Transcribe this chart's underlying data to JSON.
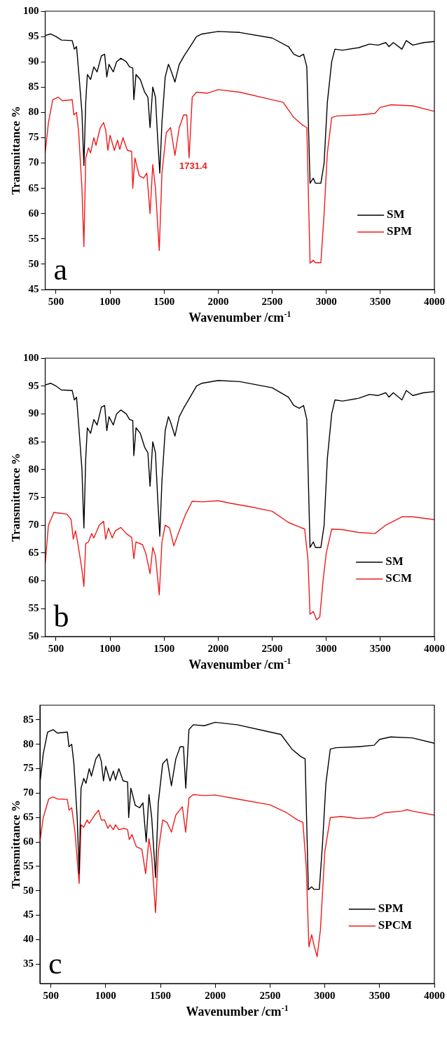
{
  "chart_data": [
    {
      "type": "line",
      "xlabel": "Wavenumber /cm$^{-1}$",
      "ylabel": "Transmittance %",
      "xlim": [
        400,
        4000
      ],
      "xticks": [
        500,
        1000,
        1500,
        2000,
        2500,
        3000,
        3500,
        4000
      ],
      "ylim": [
        45,
        100
      ],
      "yticks": [
        45,
        50,
        55,
        60,
        65,
        70,
        75,
        80,
        85,
        90,
        95,
        100
      ],
      "legend": "bottom right",
      "grid": false,
      "annotations": [
        "a",
        {
          "text": "1731.4",
          "x": 1731.4,
          "y": 71
        }
      ],
      "series": [
        {
          "name": "SM",
          "color": "#000000",
          "x": [
            400,
            450,
            500,
            550,
            650,
            670,
            690,
            710,
            740,
            758,
            775,
            790,
            820,
            850,
            880,
            920,
            950,
            970,
            990,
            1030,
            1060,
            1100,
            1150,
            1180,
            1210,
            1220,
            1240,
            1280,
            1320,
            1350,
            1370,
            1395,
            1420,
            1440,
            1460,
            1480,
            1510,
            1540,
            1560,
            1600,
            1640,
            1680,
            1740,
            1800,
            1850,
            2000,
            2200,
            2500,
            2650,
            2700,
            2750,
            2790,
            2820,
            2850,
            2880,
            2900,
            2950,
            2980,
            3010,
            3050,
            3080,
            3150,
            3300,
            3400,
            3480,
            3550,
            3580,
            3620,
            3700,
            3740,
            3800,
            3900,
            4000
          ],
          "values": [
            95.2,
            95.5,
            95,
            94.3,
            94.2,
            92.5,
            93,
            88,
            80,
            69.5,
            82,
            87.5,
            86.5,
            89,
            88,
            91.2,
            91.5,
            87,
            89.5,
            88,
            90,
            90.7,
            90,
            89,
            88.8,
            82.5,
            87.5,
            86.5,
            84,
            83,
            77,
            85,
            83,
            75,
            68,
            78,
            87,
            89.5,
            88.5,
            86,
            89.5,
            91,
            93,
            95,
            95.5,
            96,
            95.8,
            94.7,
            93,
            91.5,
            91,
            91.5,
            89,
            66,
            67,
            66,
            66,
            70,
            82,
            90,
            92.5,
            92.3,
            92.8,
            93.5,
            93.3,
            93.8,
            93,
            93.8,
            92.5,
            94.2,
            93.3,
            93.8,
            94
          ]
        },
        {
          "name": "SPM",
          "color": "#ee1c1c",
          "x": [
            400,
            430,
            470,
            520,
            560,
            650,
            665,
            690,
            710,
            740,
            758,
            775,
            800,
            820,
            850,
            870,
            910,
            940,
            960,
            980,
            1000,
            1040,
            1070,
            1090,
            1120,
            1160,
            1200,
            1210,
            1230,
            1270,
            1310,
            1340,
            1370,
            1395,
            1420,
            1455,
            1480,
            1520,
            1560,
            1600,
            1640,
            1680,
            1710,
            1731,
            1760,
            1800,
            1900,
            2000,
            2200,
            2500,
            2600,
            2700,
            2780,
            2820,
            2850,
            2880,
            2900,
            2950,
            2980,
            3010,
            3050,
            3100,
            3300,
            3450,
            3500,
            3600,
            3800,
            4000
          ],
          "values": [
            72,
            78,
            82.5,
            83,
            82.3,
            82.5,
            79.5,
            80,
            76,
            65,
            53.5,
            71,
            73,
            72,
            75,
            73.5,
            77,
            78,
            76.5,
            72.5,
            75.5,
            72.5,
            74.5,
            72.7,
            75,
            72.5,
            72.3,
            65,
            71,
            67.5,
            67,
            68,
            60,
            69.7,
            65,
            52.7,
            68,
            76,
            77,
            71.5,
            77,
            79.5,
            79.5,
            71,
            83,
            84,
            83.8,
            84.5,
            84,
            82.5,
            82,
            79,
            77.5,
            77,
            50.2,
            50.8,
            50.3,
            50.3,
            60,
            72,
            79,
            79.3,
            79.5,
            79.8,
            81,
            81.5,
            81.3,
            80.2
          ]
        }
      ]
    },
    {
      "type": "line",
      "xlabel": "Wavenumber /cm$^{-1}$",
      "ylabel": "Transmittance %",
      "xlim": [
        400,
        4000
      ],
      "xticks": [
        500,
        1000,
        1500,
        2000,
        2500,
        3000,
        3500,
        4000
      ],
      "ylim": [
        50,
        100
      ],
      "yticks": [
        50,
        55,
        60,
        65,
        70,
        75,
        80,
        85,
        90,
        95,
        100
      ],
      "legend": "bottom right",
      "grid": false,
      "annotations": [
        "b"
      ],
      "series": [
        {
          "name": "SM",
          "color": "#000000",
          "x": [
            400,
            450,
            500,
            550,
            650,
            670,
            690,
            710,
            740,
            758,
            775,
            790,
            820,
            850,
            880,
            920,
            950,
            970,
            990,
            1030,
            1060,
            1100,
            1150,
            1180,
            1210,
            1220,
            1240,
            1280,
            1320,
            1350,
            1370,
            1395,
            1420,
            1440,
            1460,
            1480,
            1510,
            1540,
            1560,
            1600,
            1640,
            1680,
            1740,
            1800,
            1850,
            2000,
            2200,
            2500,
            2650,
            2700,
            2750,
            2790,
            2820,
            2850,
            2880,
            2900,
            2950,
            2980,
            3010,
            3050,
            3080,
            3150,
            3300,
            3400,
            3480,
            3550,
            3580,
            3620,
            3700,
            3740,
            3800,
            3900,
            4000
          ],
          "values": [
            95.2,
            95.5,
            95,
            94.3,
            94.2,
            92.5,
            93,
            88,
            80,
            69.5,
            82,
            87.5,
            86.5,
            89,
            88,
            91.2,
            91.5,
            87,
            89.5,
            88,
            90,
            90.7,
            90,
            89,
            88.8,
            82.5,
            87.5,
            86.5,
            84,
            83,
            77,
            85,
            83,
            75,
            68,
            78,
            87,
            89.5,
            88.5,
            86,
            89.5,
            91,
            93,
            95,
            95.5,
            96,
            95.8,
            94.7,
            93,
            91.5,
            91,
            91.5,
            89,
            66,
            67,
            66,
            66,
            70,
            82,
            90,
            92.5,
            92.3,
            92.8,
            93.5,
            93.3,
            93.8,
            93,
            93.8,
            92.5,
            94.2,
            93.3,
            93.8,
            94
          ]
        },
        {
          "name": "SCM",
          "color": "#ee1c1c",
          "x": [
            400,
            430,
            480,
            520,
            600,
            640,
            660,
            680,
            700,
            740,
            758,
            775,
            800,
            830,
            850,
            900,
            940,
            960,
            985,
            1020,
            1050,
            1100,
            1150,
            1200,
            1220,
            1240,
            1300,
            1330,
            1370,
            1395,
            1420,
            1455,
            1480,
            1510,
            1550,
            1590,
            1640,
            1700,
            1760,
            1850,
            2000,
            2100,
            2300,
            2500,
            2650,
            2750,
            2800,
            2830,
            2850,
            2880,
            2910,
            2940,
            2970,
            3000,
            3050,
            3150,
            3300,
            3450,
            3550,
            3700,
            3800,
            4000
          ],
          "values": [
            63,
            70,
            72.3,
            72.2,
            72,
            71,
            67.5,
            69,
            67,
            62,
            59,
            66.7,
            67,
            68.5,
            67.7,
            70,
            70.7,
            67.5,
            69.5,
            67.7,
            69,
            69.6,
            68.5,
            67.8,
            64,
            67,
            66.5,
            65,
            61.3,
            66,
            64.5,
            57.5,
            67,
            70,
            69.5,
            66.3,
            69,
            72,
            74.3,
            74.2,
            74.4,
            74,
            73.3,
            72.5,
            70.5,
            69.7,
            69.3,
            64,
            54,
            54.5,
            53,
            53.5,
            60,
            65,
            69.3,
            69.2,
            68.7,
            68.5,
            70,
            71.5,
            71.5,
            71
          ]
        }
      ]
    },
    {
      "type": "line",
      "xlabel": "Wavenumber /cm$^{-1}$",
      "ylabel": "Transmittance %",
      "xlim": [
        400,
        4000
      ],
      "xticks": [
        500,
        1000,
        1500,
        2000,
        2500,
        3000,
        3500,
        4000
      ],
      "ylim": [
        31,
        88
      ],
      "yticks": [
        35,
        40,
        45,
        50,
        55,
        60,
        65,
        70,
        75,
        80,
        85
      ],
      "legend": "bottom right",
      "grid": false,
      "annotations": [
        "c"
      ],
      "series": [
        {
          "name": "SPM",
          "color": "#000000",
          "x": [
            400,
            430,
            470,
            520,
            560,
            650,
            665,
            690,
            710,
            740,
            758,
            775,
            800,
            820,
            850,
            870,
            910,
            940,
            960,
            980,
            1000,
            1040,
            1070,
            1090,
            1120,
            1160,
            1200,
            1210,
            1230,
            1270,
            1310,
            1340,
            1370,
            1395,
            1420,
            1455,
            1480,
            1520,
            1560,
            1600,
            1640,
            1680,
            1710,
            1731,
            1760,
            1800,
            1900,
            2000,
            2200,
            2500,
            2600,
            2700,
            2780,
            2820,
            2850,
            2880,
            2900,
            2950,
            2980,
            3010,
            3050,
            3100,
            3300,
            3450,
            3500,
            3600,
            3800,
            4000
          ],
          "values": [
            72,
            78,
            82.5,
            83,
            82.3,
            82.5,
            79.5,
            80,
            76,
            65,
            53.5,
            71,
            73,
            72,
            75,
            73.5,
            77,
            78,
            76.5,
            72.5,
            75.5,
            72.5,
            74.5,
            72.7,
            75,
            72.5,
            72.3,
            65,
            71,
            67.5,
            67,
            68,
            60,
            69.7,
            65,
            52.7,
            68,
            76,
            77,
            71.5,
            77,
            79.5,
            79.5,
            71,
            83,
            84,
            83.8,
            84.5,
            84,
            82.5,
            82,
            79,
            77.5,
            77,
            50.2,
            50.8,
            50.3,
            50.3,
            60,
            72,
            79,
            79.3,
            79.5,
            79.8,
            81,
            81.5,
            81.3,
            80.2
          ]
        },
        {
          "name": "SPCM",
          "color": "#ee1c1c",
          "x": [
            400,
            430,
            480,
            520,
            560,
            650,
            665,
            690,
            720,
            745,
            758,
            775,
            800,
            830,
            850,
            900,
            935,
            960,
            990,
            1020,
            1040,
            1070,
            1090,
            1120,
            1170,
            1200,
            1215,
            1240,
            1280,
            1330,
            1365,
            1395,
            1420,
            1455,
            1480,
            1520,
            1560,
            1600,
            1640,
            1700,
            1730,
            1760,
            1800,
            1900,
            2000,
            2200,
            2500,
            2650,
            2750,
            2800,
            2830,
            2855,
            2880,
            2905,
            2930,
            2960,
            3000,
            3050,
            3150,
            3300,
            3450,
            3550,
            3700,
            3750,
            3800,
            4000
          ],
          "values": [
            60,
            65,
            68.8,
            69.2,
            68.8,
            68.7,
            66.5,
            67,
            62,
            55,
            51.5,
            63.5,
            63,
            64.5,
            63.8,
            65.5,
            66.5,
            64.5,
            64.5,
            62.8,
            63.5,
            62.5,
            63.5,
            62.5,
            62.8,
            62.5,
            60.5,
            61.5,
            59,
            58.5,
            53.5,
            60.7,
            57,
            45.5,
            58,
            64.5,
            64,
            62,
            65.5,
            67.2,
            62,
            69,
            69.7,
            69.5,
            69.6,
            68.8,
            67.6,
            66,
            64.5,
            64,
            55,
            38.5,
            41,
            38.5,
            36.5,
            42,
            58,
            65,
            65.2,
            64.8,
            65,
            66,
            66.3,
            66.6,
            66.3,
            65.5
          ]
        }
      ]
    }
  ]
}
